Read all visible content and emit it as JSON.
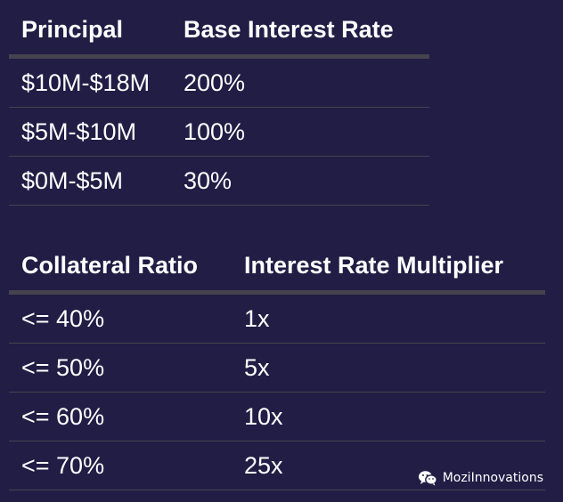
{
  "principal_table": {
    "headers": [
      "Principal",
      "Base Interest Rate"
    ],
    "rows": [
      [
        "$10M-$18M",
        "200%"
      ],
      [
        "$5M-$10M",
        "100%"
      ],
      [
        "$0M-$5M",
        "30%"
      ]
    ]
  },
  "collateral_table": {
    "headers": [
      "Collateral Ratio",
      "Interest Rate Multiplier"
    ],
    "rows": [
      [
        "<= 40%",
        "1x"
      ],
      [
        "<= 50%",
        "5x"
      ],
      [
        "<= 60%",
        "10x"
      ],
      [
        "<= 70%",
        "25x"
      ]
    ]
  },
  "watermark": {
    "icon": "wechat-icon",
    "text": "MoziInnovations"
  }
}
